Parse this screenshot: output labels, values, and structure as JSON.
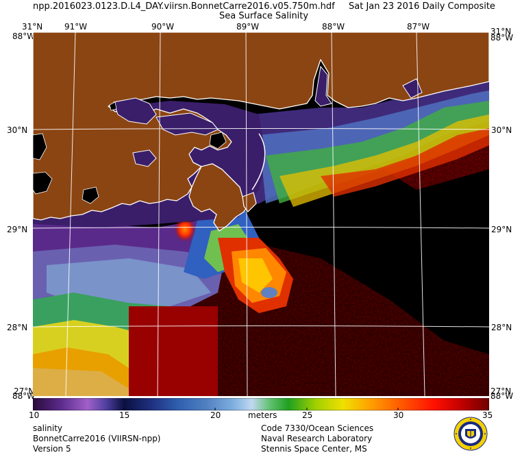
{
  "header": {
    "filename": "npp.2016023.0123.D.L4_DAY.viirsn.BonnetCarre2016.v05.750m.hdf",
    "date": "Sat Jan 23 2016 Daily Composite",
    "product": "Sea Surface Salinity"
  },
  "axes": {
    "lon_labels": [
      "91°W",
      "90°W",
      "89°W",
      "88°W",
      "87°W"
    ],
    "lat_labels": [
      "30°N",
      "29°N",
      "28°N"
    ],
    "corner_top_left_lat": "31°N",
    "corner_top_right_lat": "31°N",
    "corner_top_left_lon": "88°W",
    "corner_top_right_lon": "88°W",
    "corner_bottom_left_lat": "27°N",
    "corner_bottom_right_lat": "27°N",
    "corner_bottom_left_lon": "88°W",
    "corner_bottom_right_lon": "88°W"
  },
  "colorbar": {
    "min": 10,
    "max": 35,
    "ticks": [
      "10",
      "15",
      "20",
      "25",
      "30",
      "35"
    ],
    "units": "meters"
  },
  "footer": {
    "left": [
      "salinity",
      "BonnetCarre2016 (VIIRSN-npp)",
      "Version 5"
    ],
    "center": [
      "Code 7330/Ocean Sciences",
      "Naval Research Laboratory",
      "Stennis Space Center, MS"
    ]
  },
  "colors": {
    "land": "#8b4513",
    "no_data": "#000000",
    "coastline": "#ffffff",
    "grid": "#ffffff"
  },
  "icons": {
    "logo": "nrl-seal-icon"
  }
}
